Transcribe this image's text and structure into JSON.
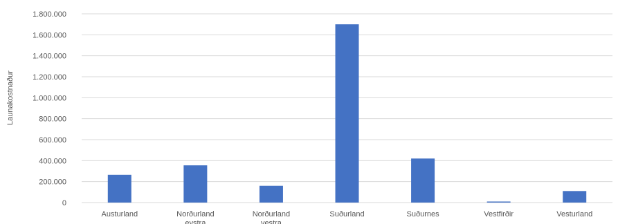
{
  "chart_data": {
    "type": "bar",
    "title": "",
    "xlabel": "",
    "ylabel": "Launakostnaður",
    "categories": [
      "Austurland",
      "Norðurland\neystra",
      "Norðurland\nvestra",
      "Suðurland",
      "Suðurnes",
      "Vestfirðir",
      "Vesturland"
    ],
    "values": [
      265000,
      355000,
      160000,
      1700000,
      420000,
      10000,
      110000
    ],
    "ylim": [
      0,
      1800000
    ],
    "yticks": [
      0,
      200000,
      400000,
      600000,
      800000,
      1000000,
      1200000,
      1400000,
      1600000,
      1800000
    ],
    "ytick_labels": [
      "0",
      "200.000",
      "400.000",
      "600.000",
      "800.000",
      "1.000.000",
      "1.200.000",
      "1.400.000",
      "1.600.000",
      "1.800.000"
    ],
    "grid": true,
    "bar_color": "#4472C4",
    "grid_color": "#d9d9d9"
  }
}
